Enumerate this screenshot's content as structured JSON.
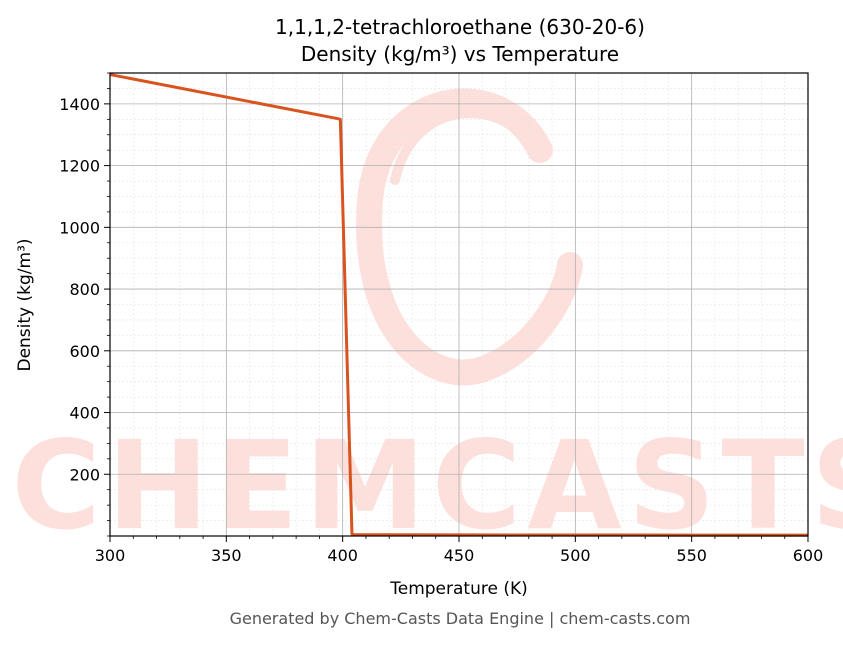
{
  "chart_data": {
    "type": "line",
    "title_line1": "1,1,1,2-tetrachloroethane (630-20-6)",
    "title_line2": "Density (kg/m³) vs Temperature",
    "xlabel": "Temperature (K)",
    "ylabel": "Density (kg/m³)",
    "xlim": [
      300,
      600
    ],
    "ylim": [
      0,
      1500
    ],
    "xticks": [
      300,
      350,
      400,
      450,
      500,
      550,
      600
    ],
    "yticks": [
      200,
      400,
      600,
      800,
      1000,
      1200,
      1400
    ],
    "grid": true,
    "line_color": "#d9531e",
    "series": [
      {
        "x": [
          300,
          398,
          399,
          404,
          405,
          450,
          500,
          550,
          600
        ],
        "y": [
          1495,
          1352,
          1350,
          6,
          4,
          3.6,
          3.2,
          2.9,
          2.7
        ]
      }
    ]
  },
  "watermark": {
    "text": "CHEMCASTS",
    "color": "#fde0dc"
  },
  "footer": "Generated by Chem-Casts Data Engine | chem-casts.com"
}
